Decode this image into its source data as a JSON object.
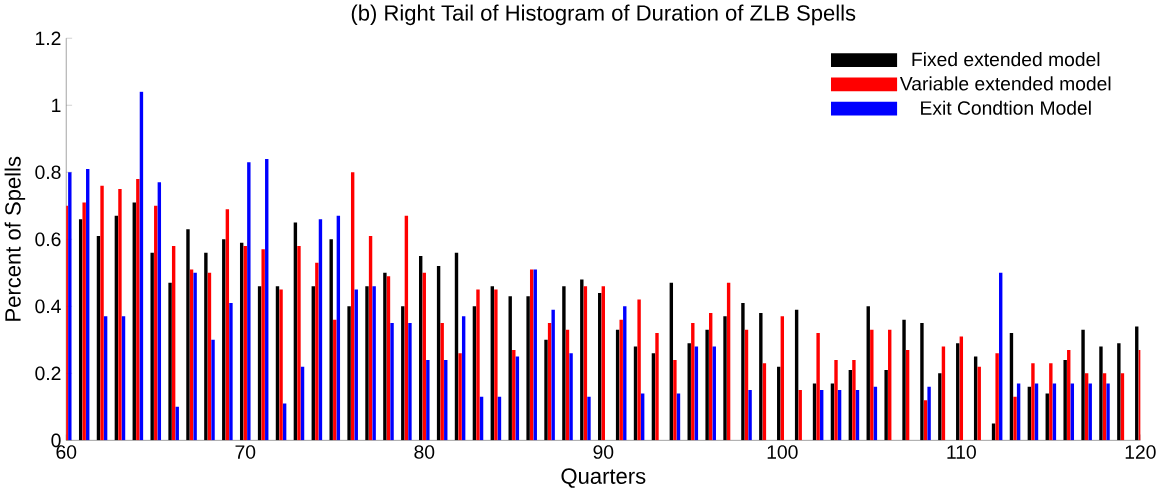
{
  "chart_data": {
    "type": "bar",
    "title": "(b) Right Tail of Histogram of Duration of ZLB Spells",
    "xlabel": "Quarters",
    "ylabel": "Percent of Spells",
    "x": [
      60,
      61,
      62,
      63,
      64,
      65,
      66,
      67,
      68,
      69,
      70,
      71,
      72,
      73,
      74,
      75,
      76,
      77,
      78,
      79,
      80,
      81,
      82,
      83,
      84,
      85,
      86,
      87,
      88,
      89,
      90,
      91,
      92,
      93,
      94,
      95,
      96,
      97,
      98,
      99,
      100,
      101,
      102,
      103,
      104,
      105,
      106,
      107,
      108,
      109,
      110,
      111,
      112,
      113,
      114,
      115,
      116,
      117,
      118,
      119,
      120
    ],
    "series": [
      {
        "name": "Fixed extended model",
        "color": "#000000",
        "values": [
          null,
          0.66,
          0.61,
          0.67,
          0.71,
          0.56,
          0.47,
          0.63,
          0.56,
          0.6,
          0.59,
          0.46,
          0.46,
          0.65,
          0.46,
          0.6,
          0.4,
          0.46,
          0.5,
          0.4,
          0.55,
          0.52,
          0.56,
          0.4,
          0.46,
          0.43,
          0.43,
          0.3,
          0.46,
          0.48,
          0.44,
          0.33,
          0.28,
          0.26,
          0.47,
          0.29,
          0.33,
          0.37,
          0.41,
          0.38,
          0.22,
          0.39,
          0.17,
          0.17,
          0.21,
          0.4,
          0.21,
          0.36,
          0.35,
          0.2,
          0.29,
          0.25,
          0.05,
          0.32,
          0.16,
          0.14,
          0.24,
          0.33,
          0.28,
          0.29,
          0.34
        ]
      },
      {
        "name": "Variable extended model",
        "color": "#ff0000",
        "values": [
          0.7,
          0.71,
          0.76,
          0.75,
          0.78,
          0.7,
          0.58,
          0.51,
          0.5,
          0.69,
          0.58,
          0.57,
          0.45,
          0.58,
          0.53,
          0.36,
          0.8,
          0.61,
          0.49,
          0.67,
          0.5,
          0.35,
          0.26,
          0.45,
          0.45,
          0.27,
          0.51,
          0.35,
          0.33,
          0.46,
          0.46,
          0.36,
          0.42,
          0.32,
          0.24,
          0.35,
          0.38,
          0.47,
          0.33,
          0.23,
          0.37,
          0.15,
          0.32,
          0.24,
          0.24,
          0.33,
          0.33,
          0.27,
          0.12,
          0.28,
          0.31,
          0.22,
          0.26,
          0.13,
          0.23,
          0.23,
          0.27,
          0.2,
          0.2,
          0.2,
          0.27
        ]
      },
      {
        "name": "Exit Condtion Model",
        "color": "#0000ff",
        "values": [
          0.8,
          0.81,
          0.37,
          0.37,
          1.04,
          0.77,
          0.1,
          0.5,
          0.3,
          0.41,
          0.83,
          0.84,
          0.11,
          0.22,
          0.66,
          0.67,
          0.45,
          0.46,
          0.35,
          0.35,
          0.24,
          0.24,
          0.37,
          0.13,
          0.13,
          0.25,
          0.51,
          0.39,
          0.26,
          0.13,
          null,
          0.4,
          0.14,
          null,
          0.14,
          0.28,
          0.28,
          null,
          0.15,
          null,
          null,
          null,
          0.15,
          0.15,
          0.15,
          0.16,
          null,
          null,
          0.16,
          null,
          null,
          null,
          0.5,
          0.17,
          0.17,
          0.17,
          0.17,
          0.17,
          0.17,
          null,
          null
        ]
      }
    ],
    "xlim": [
      60,
      120
    ],
    "xticks": [
      60,
      70,
      80,
      90,
      100,
      110,
      120
    ],
    "ylim": [
      0,
      1.2
    ],
    "yticks": [
      0,
      {
        "value": 0.2,
        "label": "0.2"
      },
      {
        "value": 0.4,
        "label": "0.4"
      },
      {
        "value": 0.6,
        "label": "0.6"
      },
      {
        "value": 0.8,
        "label": "0.8"
      },
      1,
      {
        "value": 1.2,
        "label": "1.2"
      }
    ],
    "grid": false,
    "legend": "top right"
  }
}
